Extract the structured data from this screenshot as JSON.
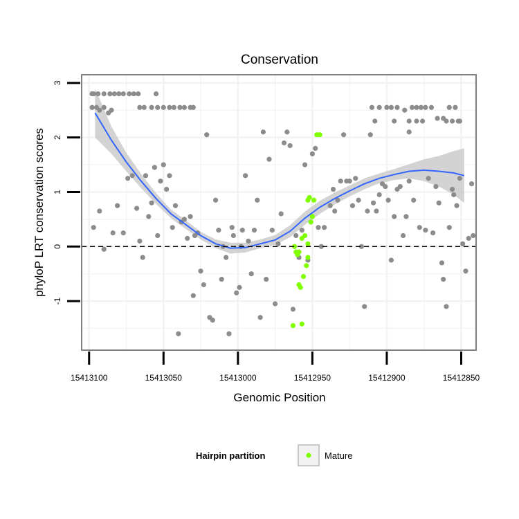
{
  "chart_data": {
    "type": "scatter",
    "title": "Conservation",
    "xlabel": "Genomic Position",
    "ylabel": "phyloP LRT conservation scores",
    "x_reversed": true,
    "xlim": [
      15413105,
      15412840
    ],
    "ylim": [
      -1.9,
      3.15
    ],
    "x_ticks": [
      15413100,
      15413050,
      15413000,
      15412950,
      15412900,
      15412850
    ],
    "x_tick_labels": [
      "15413100",
      "15413050",
      "15413000",
      "15412950",
      "15412900",
      "15412850"
    ],
    "y_ticks": [
      -1,
      0,
      1,
      2,
      3
    ],
    "y_tick_labels": [
      "-1",
      "0",
      "1",
      "2",
      "3"
    ],
    "grid": true,
    "reference_line": {
      "y": 0,
      "style": "dashed",
      "color": "#000000"
    },
    "legend": {
      "title": "Hairpin partition",
      "placement": "bottom",
      "entries": [
        {
          "label": "Mature",
          "color": "#7fff00"
        }
      ]
    },
    "colors": {
      "points": "#8c8c8c",
      "mature": "#7fff00",
      "smooth_line": "#3366ff",
      "confidence_band": "#c8c8c8",
      "panel_border": "#808080",
      "grid": "#f2f2f2"
    },
    "series": [
      {
        "name": "",
        "color": "#8c8c8c",
        "points": [
          [
            15413098,
            2.8
          ],
          [
            15413097,
            2.8
          ],
          [
            15413094,
            2.8
          ],
          [
            15413090,
            2.8
          ],
          [
            15413086,
            2.8
          ],
          [
            15413083,
            2.8
          ],
          [
            15413080,
            2.8
          ],
          [
            15413077,
            2.8
          ],
          [
            15413073,
            2.8
          ],
          [
            15413070,
            2.8
          ],
          [
            15413067,
            2.8
          ],
          [
            15413055,
            2.8
          ],
          [
            15413098,
            2.55
          ],
          [
            15413095,
            2.55
          ],
          [
            15413093,
            2.5
          ],
          [
            15413090,
            2.55
          ],
          [
            15413087,
            2.45
          ],
          [
            15413085,
            2.5
          ],
          [
            15413066,
            2.55
          ],
          [
            15413063,
            2.55
          ],
          [
            15413058,
            2.55
          ],
          [
            15413054,
            2.55
          ],
          [
            15413050,
            2.55
          ],
          [
            15413046,
            2.55
          ],
          [
            15413043,
            2.55
          ],
          [
            15413039,
            2.55
          ],
          [
            15413036,
            2.55
          ],
          [
            15413032,
            2.55
          ],
          [
            15413030,
            2.55
          ],
          [
            15413097,
            0.35
          ],
          [
            15413093,
            0.65
          ],
          [
            15413090,
            -0.05
          ],
          [
            15413084,
            0.25
          ],
          [
            15413081,
            0.75
          ],
          [
            15413077,
            0.25
          ],
          [
            15413074,
            1.25
          ],
          [
            15413071,
            1.3
          ],
          [
            15413068,
            0.7
          ],
          [
            15413066,
            0.1
          ],
          [
            15413064,
            -0.2
          ],
          [
            15413062,
            1.3
          ],
          [
            15413060,
            0.55
          ],
          [
            15413058,
            0.8
          ],
          [
            15413056,
            1.45
          ],
          [
            15413054,
            0.2
          ],
          [
            15413052,
            1.2
          ],
          [
            15413050,
            1.5
          ],
          [
            15413048,
            1.05
          ],
          [
            15413046,
            1.3
          ],
          [
            15413044,
            0.35
          ],
          [
            15413042,
            0.75
          ],
          [
            15413040,
            -1.6
          ],
          [
            15413038,
            0.45
          ],
          [
            15413036,
            0.5
          ],
          [
            15413034,
            0.15
          ],
          [
            15413032,
            0.55
          ],
          [
            15413030,
            -0.9
          ],
          [
            15413029,
            0.2
          ],
          [
            15413027,
            0.25
          ],
          [
            15413025,
            -0.45
          ],
          [
            15413023,
            -0.7
          ],
          [
            15413021,
            2.05
          ],
          [
            15413019,
            -1.3
          ],
          [
            15413017,
            -1.35
          ],
          [
            15413015,
            0.85
          ],
          [
            15413013,
            0.3
          ],
          [
            15413011,
            -0.6
          ],
          [
            15413010,
            0.0
          ],
          [
            15413008,
            -0.2
          ],
          [
            15413006,
            -1.6
          ],
          [
            15413004,
            0.35
          ],
          [
            15413003,
            0.2
          ],
          [
            15413001,
            -0.85
          ],
          [
            15412999,
            -0.75
          ],
          [
            15412998,
            0.0
          ],
          [
            15412997,
            0.3
          ],
          [
            15412995,
            1.3
          ],
          [
            15412993,
            0.1
          ],
          [
            15412991,
            -0.5
          ],
          [
            15412989,
            0.3
          ],
          [
            15412987,
            0.85
          ],
          [
            15412985,
            -1.3
          ],
          [
            15412983,
            2.1
          ],
          [
            15412981,
            -0.6
          ],
          [
            15412979,
            1.6
          ],
          [
            15412977,
            0.3
          ],
          [
            15412975,
            -1.05
          ],
          [
            15412973,
            0.05
          ],
          [
            15412971,
            0.6
          ],
          [
            15412969,
            1.9
          ],
          [
            15412967,
            2.1
          ],
          [
            15412965,
            1.85
          ],
          [
            15412963,
            -1.15
          ],
          [
            15412961,
            0.2
          ],
          [
            15412959,
            -0.2
          ],
          [
            15412957,
            0.3
          ],
          [
            15412955,
            1.5
          ],
          [
            15412953,
            -0.25
          ],
          [
            15412951,
            0.45
          ],
          [
            15412950,
            1.7
          ],
          [
            15412948,
            1.8
          ],
          [
            15412946,
            0.35
          ],
          [
            15412944,
            0.0
          ],
          [
            15412942,
            0.35
          ],
          [
            15412938,
            0.75
          ],
          [
            15412936,
            1.05
          ],
          [
            15412935,
            0.65
          ],
          [
            15412933,
            0.85
          ],
          [
            15412931,
            1.2
          ],
          [
            15412929,
            2.05
          ],
          [
            15412927,
            1.2
          ],
          [
            15412925,
            1.2
          ],
          [
            15412923,
            0.75
          ],
          [
            15412921,
            1.25
          ],
          [
            15412919,
            0.85
          ],
          [
            15412917,
            0.0
          ],
          [
            15412915,
            -1.1
          ],
          [
            15412913,
            0.65
          ],
          [
            15412911,
            2.05
          ],
          [
            15412909,
            0.8
          ],
          [
            15412907,
            0.65
          ],
          [
            15412905,
            0.95
          ],
          [
            15412903,
            1.15
          ],
          [
            15412901,
            1.1
          ],
          [
            15412899,
            0.85
          ],
          [
            15412897,
            -0.25
          ],
          [
            15412895,
            0.55
          ],
          [
            15412893,
            1.05
          ],
          [
            15412891,
            1.1
          ],
          [
            15412889,
            0.2
          ],
          [
            15412887,
            0.55
          ],
          [
            15412885,
            1.2
          ],
          [
            15412910,
            2.55
          ],
          [
            15412905,
            2.55
          ],
          [
            15412900,
            2.55
          ],
          [
            15412897,
            2.55
          ],
          [
            15412893,
            2.55
          ],
          [
            15412888,
            2.5
          ],
          [
            15412883,
            2.55
          ],
          [
            15412880,
            2.55
          ],
          [
            15412877,
            2.55
          ],
          [
            15412874,
            2.55
          ],
          [
            15412870,
            2.55
          ],
          [
            15412866,
            2.35
          ],
          [
            15412862,
            2.35
          ],
          [
            15412858,
            2.55
          ],
          [
            15412854,
            2.55
          ],
          [
            15412851,
            2.3
          ],
          [
            15412908,
            2.3
          ],
          [
            15412895,
            2.3
          ],
          [
            15412885,
            2.3
          ],
          [
            15412880,
            2.3
          ],
          [
            15412876,
            2.3
          ],
          [
            15412860,
            2.3
          ],
          [
            15412856,
            2.3
          ],
          [
            15412852,
            2.3
          ],
          [
            15412885,
            2.1
          ],
          [
            15412882,
            0.85
          ],
          [
            15412878,
            0.35
          ],
          [
            15412874,
            0.3
          ],
          [
            15412872,
            1.25
          ],
          [
            15412869,
            0.25
          ],
          [
            15412867,
            1.1
          ],
          [
            15412865,
            0.8
          ],
          [
            15412863,
            -0.3
          ],
          [
            15412862,
            -0.6
          ],
          [
            15412860,
            -1.1
          ],
          [
            15412858,
            0.35
          ],
          [
            15412856,
            1.05
          ],
          [
            15412855,
            0.95
          ],
          [
            15412853,
            0.75
          ],
          [
            15412851,
            1.25
          ],
          [
            15412849,
            0.05
          ],
          [
            15412847,
            -0.45
          ],
          [
            15412845,
            0.15
          ],
          [
            15412843,
            1.15
          ],
          [
            15412842,
            0.2
          ]
        ]
      },
      {
        "name": "Mature",
        "color": "#7fff00",
        "points": [
          [
            15412963,
            -1.45
          ],
          [
            15412957,
            -1.42
          ],
          [
            15412959,
            -0.7
          ],
          [
            15412958,
            -0.75
          ],
          [
            15412956,
            -0.55
          ],
          [
            15412954,
            -0.35
          ],
          [
            15412953,
            -0.2
          ],
          [
            15412961,
            -0.1
          ],
          [
            15412959,
            -0.1
          ],
          [
            15412960,
            -0.15
          ],
          [
            15412962,
            0.0
          ],
          [
            15412957,
            0.15
          ],
          [
            15412955,
            0.2
          ],
          [
            15412953,
            0.05
          ],
          [
            15412951,
            0.45
          ],
          [
            15412950,
            0.55
          ],
          [
            15412952,
            0.9
          ],
          [
            15412953,
            0.85
          ],
          [
            15412949,
            0.85
          ],
          [
            15412947,
            2.05
          ],
          [
            15412945,
            2.05
          ]
        ]
      }
    ],
    "smooth": {
      "x": [
        15413096,
        15413085,
        15413075,
        15413065,
        15413055,
        15413045,
        15413035,
        15413025,
        15413015,
        15413005,
        15412995,
        15412985,
        15412975,
        15412965,
        15412955,
        15412945,
        15412935,
        15412925,
        15412915,
        15412905,
        15412895,
        15412885,
        15412875,
        15412865,
        15412855,
        15412848
      ],
      "y": [
        2.45,
        1.95,
        1.55,
        1.2,
        0.88,
        0.6,
        0.4,
        0.2,
        0.05,
        -0.03,
        -0.02,
        0.05,
        0.12,
        0.28,
        0.52,
        0.72,
        0.88,
        1.02,
        1.15,
        1.25,
        1.32,
        1.38,
        1.4,
        1.38,
        1.35,
        1.3
      ],
      "lower": [
        2.0,
        1.7,
        1.38,
        1.07,
        0.78,
        0.52,
        0.32,
        0.13,
        -0.03,
        -0.13,
        -0.11,
        -0.03,
        0.03,
        0.17,
        0.4,
        0.6,
        0.77,
        0.92,
        1.05,
        1.16,
        1.22,
        1.25,
        1.2,
        1.1,
        0.95,
        0.8
      ],
      "upper": [
        2.9,
        2.2,
        1.72,
        1.33,
        0.98,
        0.68,
        0.48,
        0.27,
        0.13,
        0.07,
        0.07,
        0.13,
        0.21,
        0.39,
        0.64,
        0.84,
        0.99,
        1.12,
        1.25,
        1.34,
        1.42,
        1.51,
        1.6,
        1.66,
        1.75,
        1.8
      ]
    }
  }
}
